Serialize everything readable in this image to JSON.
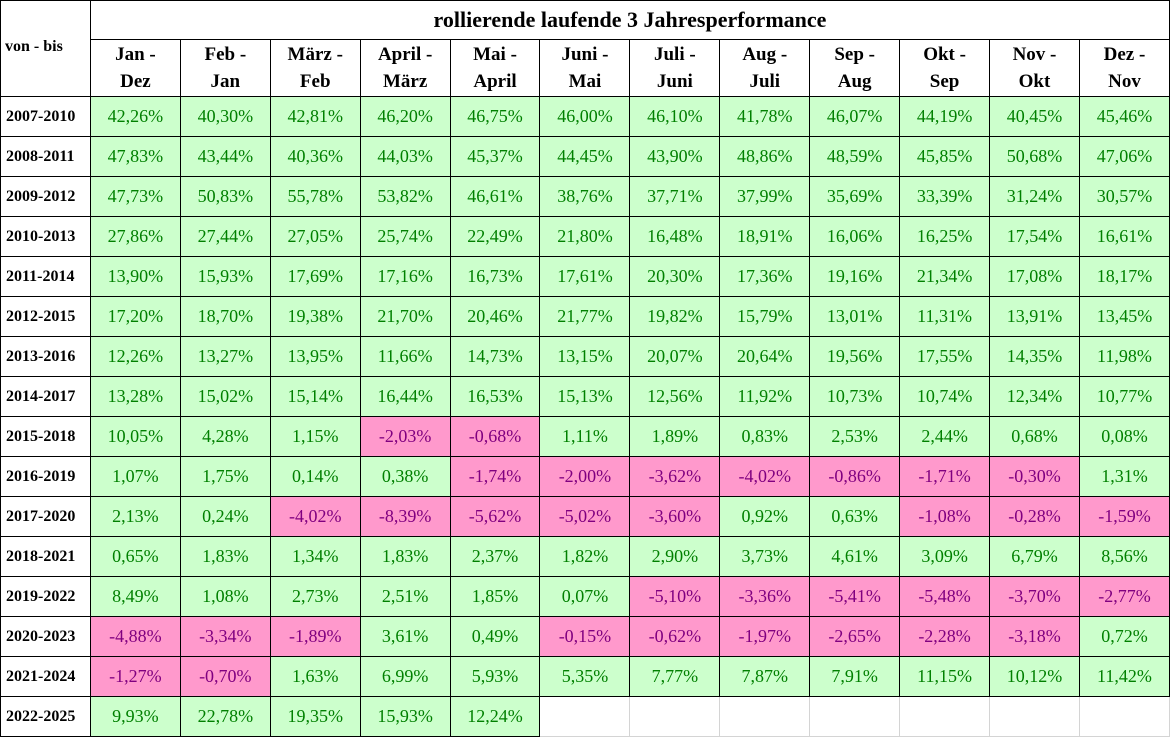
{
  "title": "rollierende laufende 3 Jahresperformance",
  "corner_label": "von - bis",
  "months": [
    [
      "Jan -",
      "Dez"
    ],
    [
      "Feb -",
      "Jan"
    ],
    [
      "März -",
      "Feb"
    ],
    [
      "April -",
      "März"
    ],
    [
      "Mai -",
      "April"
    ],
    [
      "Juni -",
      "Mai"
    ],
    [
      "Juli -",
      "Juni"
    ],
    [
      "Aug -",
      "Juli"
    ],
    [
      "Sep -",
      "Aug"
    ],
    [
      "Okt -",
      "Sep"
    ],
    [
      "Nov -",
      "Okt"
    ],
    [
      "Dez -",
      "Nov"
    ]
  ],
  "rows": [
    {
      "period": "2007-2010",
      "values": [
        "42,26%",
        "40,30%",
        "42,81%",
        "46,20%",
        "46,75%",
        "46,00%",
        "46,10%",
        "41,78%",
        "46,07%",
        "44,19%",
        "40,45%",
        "45,46%"
      ]
    },
    {
      "period": "2008-2011",
      "values": [
        "47,83%",
        "43,44%",
        "40,36%",
        "44,03%",
        "45,37%",
        "44,45%",
        "43,90%",
        "48,86%",
        "48,59%",
        "45,85%",
        "50,68%",
        "47,06%"
      ]
    },
    {
      "period": "2009-2012",
      "values": [
        "47,73%",
        "50,83%",
        "55,78%",
        "53,82%",
        "46,61%",
        "38,76%",
        "37,71%",
        "37,99%",
        "35,69%",
        "33,39%",
        "31,24%",
        "30,57%"
      ]
    },
    {
      "period": "2010-2013",
      "values": [
        "27,86%",
        "27,44%",
        "27,05%",
        "25,74%",
        "22,49%",
        "21,80%",
        "16,48%",
        "18,91%",
        "16,06%",
        "16,25%",
        "17,54%",
        "16,61%"
      ]
    },
    {
      "period": "2011-2014",
      "values": [
        "13,90%",
        "15,93%",
        "17,69%",
        "17,16%",
        "16,73%",
        "17,61%",
        "20,30%",
        "17,36%",
        "19,16%",
        "21,34%",
        "17,08%",
        "18,17%"
      ]
    },
    {
      "period": "2012-2015",
      "values": [
        "17,20%",
        "18,70%",
        "19,38%",
        "21,70%",
        "20,46%",
        "21,77%",
        "19,82%",
        "15,79%",
        "13,01%",
        "11,31%",
        "13,91%",
        "13,45%"
      ]
    },
    {
      "period": "2013-2016",
      "values": [
        "12,26%",
        "13,27%",
        "13,95%",
        "11,66%",
        "14,73%",
        "13,15%",
        "20,07%",
        "20,64%",
        "19,56%",
        "17,55%",
        "14,35%",
        "11,98%"
      ]
    },
    {
      "period": "2014-2017",
      "values": [
        "13,28%",
        "15,02%",
        "15,14%",
        "16,44%",
        "16,53%",
        "15,13%",
        "12,56%",
        "11,92%",
        "10,73%",
        "10,74%",
        "12,34%",
        "10,77%"
      ]
    },
    {
      "period": "2015-2018",
      "values": [
        "10,05%",
        "4,28%",
        "1,15%",
        "-2,03%",
        "-0,68%",
        "1,11%",
        "1,89%",
        "0,83%",
        "2,53%",
        "2,44%",
        "0,68%",
        "0,08%"
      ]
    },
    {
      "period": "2016-2019",
      "values": [
        "1,07%",
        "1,75%",
        "0,14%",
        "0,38%",
        "-1,74%",
        "-2,00%",
        "-3,62%",
        "-4,02%",
        "-0,86%",
        "-1,71%",
        "-0,30%",
        "1,31%"
      ]
    },
    {
      "period": "2017-2020",
      "values": [
        "2,13%",
        "0,24%",
        "-4,02%",
        "-8,39%",
        "-5,62%",
        "-5,02%",
        "-3,60%",
        "0,92%",
        "0,63%",
        "-1,08%",
        "-0,28%",
        "-1,59%"
      ]
    },
    {
      "period": "2018-2021",
      "values": [
        "0,65%",
        "1,83%",
        "1,34%",
        "1,83%",
        "2,37%",
        "1,82%",
        "2,90%",
        "3,73%",
        "4,61%",
        "3,09%",
        "6,79%",
        "8,56%"
      ]
    },
    {
      "period": "2019-2022",
      "values": [
        "8,49%",
        "1,08%",
        "2,73%",
        "2,51%",
        "1,85%",
        "0,07%",
        "-5,10%",
        "-3,36%",
        "-5,41%",
        "-5,48%",
        "-3,70%",
        "-2,77%"
      ]
    },
    {
      "period": "2020-2023",
      "values": [
        "-4,88%",
        "-3,34%",
        "-1,89%",
        "3,61%",
        "0,49%",
        "-0,15%",
        "-0,62%",
        "-1,97%",
        "-2,65%",
        "-2,28%",
        "-3,18%",
        "0,72%"
      ]
    },
    {
      "period": "2021-2024",
      "values": [
        "-1,27%",
        "-0,70%",
        "1,63%",
        "6,99%",
        "5,93%",
        "5,35%",
        "7,77%",
        "7,87%",
        "7,91%",
        "11,15%",
        "10,12%",
        "11,42%"
      ]
    },
    {
      "period": "2022-2025",
      "values": [
        "9,93%",
        "22,78%",
        "19,35%",
        "15,93%",
        "12,24%",
        "",
        "",
        "",
        "",
        "",
        "",
        ""
      ]
    }
  ],
  "colors": {
    "positive_bg": "#ccffcc",
    "positive_text": "#008000",
    "negative_bg": "#ff99cc",
    "negative_text": "#800080"
  }
}
